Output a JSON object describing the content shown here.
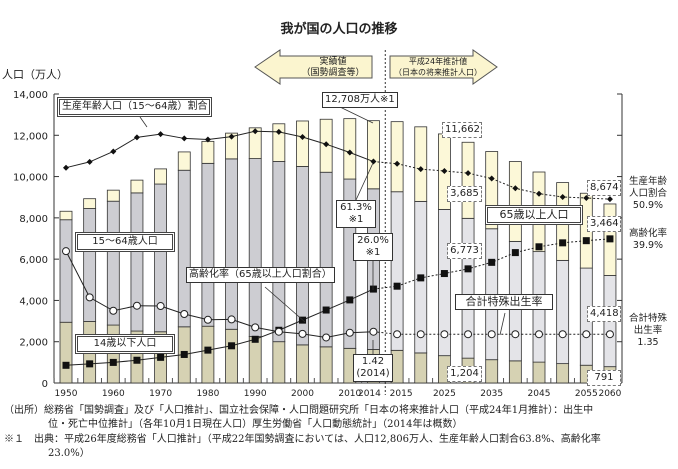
{
  "chart_data": {
    "type": "bar",
    "title": "我が国の人口の推移",
    "ylabel": "人口（万人）",
    "ylim": [
      0,
      14000
    ],
    "yticks": [
      "0",
      "2,000",
      "4,000",
      "6,000",
      "8,000",
      "10,000",
      "12,000",
      "14,000"
    ],
    "secondary_axes": {
      "ratio_percent_range": [
        0,
        80
      ],
      "fertility_range": [
        0,
        8
      ],
      "labels_shown": false
    },
    "categories": [
      "1950",
      "1955",
      "1960",
      "1965",
      "1970",
      "1975",
      "1980",
      "1985",
      "1990",
      "1995",
      "2000",
      "2005",
      "2010",
      "2014",
      "2015",
      "2020",
      "2025",
      "2030",
      "2035",
      "2040",
      "2045",
      "2050",
      "2055",
      "2060"
    ],
    "xtick_labels": [
      "1950",
      "1960",
      "1970",
      "1980",
      "1990",
      "2000",
      "2010",
      "2014",
      "2015",
      "2025",
      "2035",
      "2045",
      "2055",
      "2060"
    ],
    "stacked": true,
    "series": [
      {
        "name": "14歳以下人口",
        "type": "bar",
        "color": "#d6d2b3",
        "values": [
          2943,
          2980,
          2807,
          2517,
          2482,
          2722,
          2751,
          2603,
          2249,
          2001,
          1847,
          1752,
          1680,
          1623,
          1583,
          1457,
          1324,
          1204,
          1129,
          1073,
          1012,
          939,
          861,
          791
        ]
      },
      {
        "name": "15～64歳人口",
        "type": "bar",
        "color": "#cdcdd2",
        "projection_color": "#e4e4e8",
        "values": [
          4966,
          5473,
          6000,
          6693,
          7157,
          7585,
          7890,
          8255,
          8623,
          8730,
          8645,
          8458,
          8201,
          7785,
          7682,
          7341,
          7085,
          6773,
          6343,
          5787,
          5353,
          5001,
          4706,
          4418
        ]
      },
      {
        "name": "65歳以上人口",
        "type": "bar",
        "color": "#fcf8d8",
        "values": [
          411,
          475,
          535,
          618,
          733,
          887,
          1065,
          1247,
          1489,
          1826,
          2201,
          2567,
          2925,
          3300,
          3395,
          3612,
          3657,
          3685,
          3741,
          3868,
          3856,
          3768,
          3626,
          3464
        ]
      },
      {
        "name": "生産年齢人口（15～64歳）割合",
        "type": "line",
        "unit": "%",
        "values": [
          59.6,
          61.2,
          64.1,
          68.0,
          68.9,
          67.7,
          67.4,
          68.2,
          69.7,
          69.5,
          68.1,
          66.1,
          63.8,
          61.3,
          60.7,
          59.2,
          58.7,
          58.1,
          56.6,
          53.9,
          52.4,
          51.5,
          51.2,
          50.9
        ]
      },
      {
        "name": "高齢化率（65歳以上人口割合）",
        "type": "line",
        "unit": "%",
        "values": [
          4.9,
          5.3,
          5.7,
          6.3,
          7.1,
          7.9,
          9.1,
          10.3,
          12.1,
          14.6,
          17.4,
          20.2,
          23.0,
          26.0,
          26.8,
          29.1,
          30.3,
          31.6,
          33.4,
          36.1,
          37.7,
          38.8,
          39.4,
          39.9
        ]
      },
      {
        "name": "合計特殊出生率",
        "type": "line",
        "values": [
          3.65,
          2.37,
          2.0,
          2.14,
          2.13,
          1.91,
          1.75,
          1.76,
          1.54,
          1.42,
          1.36,
          1.26,
          1.39,
          1.42,
          1.35,
          1.35,
          1.35,
          1.35,
          1.35,
          1.35,
          1.35,
          1.35,
          1.35,
          1.35
        ]
      }
    ],
    "totals": [
      8320,
      8928,
      9342,
      9828,
      10372,
      11194,
      11706,
      12105,
      12361,
      12557,
      12693,
      12777,
      12806,
      12708,
      12660,
      12410,
      12066,
      11662,
      11212,
      10728,
      10221,
      9708,
      9193,
      8674
    ],
    "projection_start": "2015",
    "arrows": {
      "actual": [
        "実績値",
        "（国勢調査等）"
      ],
      "projection": [
        "平成24年推計値",
        "（日本の将来推計人口）"
      ]
    },
    "annotations": {
      "working_ratio": "生産年齢人口（15～64歳）割合",
      "total_2014": "12,708万人※1",
      "working_pop": "15～64歳人口",
      "aging_rate": "高齢化率（65歳以上人口割合）",
      "child_pop": "14歳以下人口",
      "ratio_2014": [
        "61.3%",
        "※1"
      ],
      "aging_2014": [
        "26.0%",
        "※1"
      ],
      "tfr_2014": [
        "1.42",
        "(2014)"
      ],
      "v11662": "11,662",
      "v3685": "3,685",
      "v6773": "6,773",
      "v1204": "1,204",
      "elderly_pop": "65歳以上人口",
      "tfr": "合計特殊出生率",
      "v8674": "8,674",
      "v3464": "3,464",
      "v4418": "4,418",
      "v791": "791",
      "right_ratio": [
        "生産年齢",
        "人口割合",
        "50.9%"
      ],
      "right_aging": [
        "高齢化率",
        "39.9%"
      ],
      "right_tfr": [
        "合計特殊",
        "出生率",
        "1.35"
      ]
    }
  },
  "footnotes": {
    "source_1": "（出所）総務省「国勢調査」及び「人口推計」、国立社会保障・人口問題研究所「日本の将来推計人口（平成24年1月推計）：出生中",
    "source_2": "位・死亡中位推計」（各年10月1日現在人口）厚生労働省「人口動態統計」（2014年は概数）",
    "note_1": "※１　出典：平成26年度総務省「人口推計」（平成22年国勢調査においては、人口12,806万人、生産年齢人口割合63.8%、高齢化率",
    "note_2": "23.0%）"
  }
}
